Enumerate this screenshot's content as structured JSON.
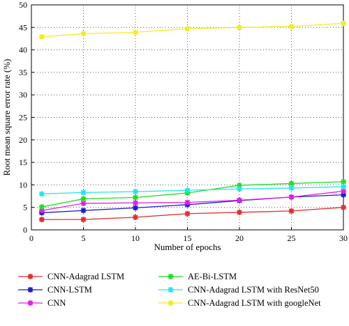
{
  "chart_data": {
    "type": "line",
    "title": "",
    "xlabel": "Number of epochs",
    "ylabel": "Root mean square error rate (%)",
    "xlim": [
      0,
      30
    ],
    "ylim": [
      0,
      50
    ],
    "xticks": [
      0,
      5,
      10,
      15,
      20,
      25,
      30
    ],
    "yticks": [
      0,
      5,
      10,
      15,
      20,
      25,
      30,
      35,
      40,
      45,
      50
    ],
    "grid": true,
    "legend_position": "bottom",
    "x": [
      1,
      5,
      10,
      15,
      20,
      25,
      30
    ],
    "series": [
      {
        "name": "CNN-Adagrad  LSTM",
        "color": "#e03030",
        "values": [
          2.3,
          2.3,
          2.8,
          3.6,
          3.9,
          4.2,
          5.0
        ]
      },
      {
        "name": "CNN-LSTM",
        "color": "#1a1ad0",
        "values": [
          3.8,
          4.3,
          4.9,
          5.6,
          6.5,
          7.3,
          7.8
        ]
      },
      {
        "name": "CNN",
        "color": "#e020e0",
        "values": [
          4.3,
          5.9,
          6.0,
          6.1,
          6.6,
          7.3,
          8.6
        ]
      },
      {
        "name": "AE-Bi-LSTM",
        "color": "#22dd22",
        "values": [
          5.1,
          6.9,
          7.2,
          8.2,
          9.9,
          10.3,
          10.7
        ]
      },
      {
        "name": "CNN-Adagrad  LSTM with ResNet50",
        "color": "#22e6e6",
        "values": [
          8.0,
          8.3,
          8.5,
          8.8,
          9.1,
          9.3,
          9.6
        ]
      },
      {
        "name": "CNN-Adagrad  LSTM with googleNet",
        "color": "#eeee22",
        "values": [
          42.9,
          43.6,
          43.9,
          44.7,
          45.0,
          45.2,
          45.9
        ]
      }
    ]
  }
}
